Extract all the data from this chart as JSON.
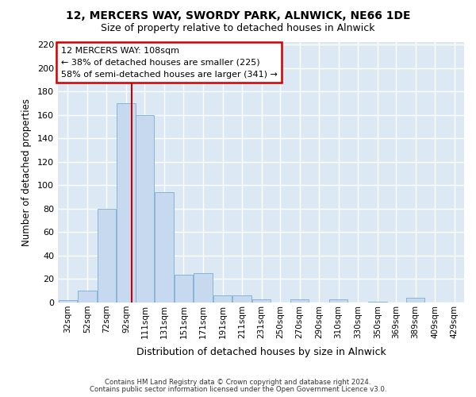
{
  "title": "12, MERCERS WAY, SWORDY PARK, ALNWICK, NE66 1DE",
  "subtitle": "Size of property relative to detached houses in Alnwick",
  "xlabel": "Distribution of detached houses by size in Alnwick",
  "ylabel": "Number of detached properties",
  "bar_color": "#c6d9ee",
  "bar_edge_color": "#7aaed4",
  "background_color": "#dce9f5",
  "grid_color": "#ffffff",
  "fig_facecolor": "#ffffff",
  "categories": [
    "32sqm",
    "52sqm",
    "72sqm",
    "92sqm",
    "111sqm",
    "131sqm",
    "151sqm",
    "171sqm",
    "191sqm",
    "211sqm",
    "231sqm",
    "250sqm",
    "270sqm",
    "290sqm",
    "310sqm",
    "330sqm",
    "350sqm",
    "369sqm",
    "389sqm",
    "409sqm",
    "429sqm"
  ],
  "values": [
    2,
    10,
    80,
    170,
    160,
    94,
    24,
    25,
    6,
    6,
    3,
    0,
    3,
    0,
    3,
    0,
    1,
    0,
    4,
    0,
    0
  ],
  "red_line_x": 108,
  "red_line_color": "#cc0000",
  "annotation_line1": "12 MERCERS WAY: 108sqm",
  "annotation_line2": "← 38% of detached houses are smaller (225)",
  "annotation_line3": "58% of semi-detached houses are larger (341) →",
  "annotation_box_facecolor": "#ffffff",
  "annotation_box_edgecolor": "#cc0000",
  "footer1": "Contains HM Land Registry data © Crown copyright and database right 2024.",
  "footer2": "Contains public sector information licensed under the Open Government Licence v3.0.",
  "ylim_max": 222,
  "yticks": [
    0,
    20,
    40,
    60,
    80,
    100,
    120,
    140,
    160,
    180,
    200,
    220
  ],
  "bin_starts": [
    32,
    52,
    72,
    92,
    111,
    131,
    151,
    171,
    191,
    211,
    231,
    250,
    270,
    290,
    310,
    330,
    350,
    369,
    389,
    409,
    429
  ],
  "bin_width": 20
}
